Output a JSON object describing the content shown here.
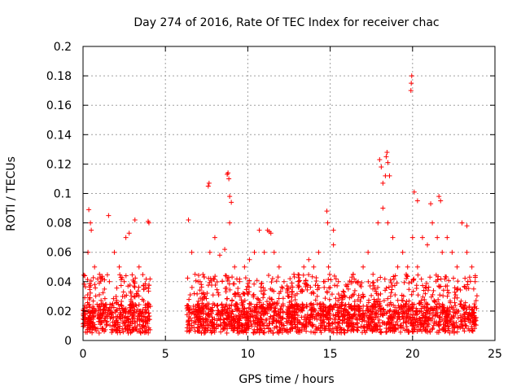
{
  "chart_data": {
    "type": "scatter",
    "title": "Day 274 of 2016, Rate Of TEC Index for receiver chac",
    "xlabel": "GPS time / hours",
    "ylabel": "ROTI / TECUs",
    "xlim": [
      0,
      25
    ],
    "ylim": [
      0,
      0.2
    ],
    "x_ticks": [
      0,
      5,
      10,
      15,
      20,
      25
    ],
    "y_ticks": [
      0,
      0.02,
      0.04,
      0.06,
      0.08,
      0.1,
      0.12,
      0.14,
      0.16,
      0.18,
      0.2
    ],
    "x_tick_labels": [
      "0",
      "5",
      "10",
      "15",
      "20",
      "25"
    ],
    "y_tick_labels": [
      "0",
      "0.02",
      "0.04",
      "0.06",
      "0.08",
      "0.1",
      "0.12",
      "0.14",
      "0.16",
      "0.18",
      "0.2"
    ],
    "grid": true,
    "marker": "+",
    "marker_color": "#ff0000",
    "series": [
      {
        "name": "ROTI",
        "x": [
          0.1,
          0.3,
          0.5,
          0.7,
          1.0,
          1.3,
          1.6,
          1.9,
          2.2,
          2.5,
          2.8,
          3.1,
          3.4,
          3.7,
          4.0,
          0.2,
          0.4,
          0.6,
          0.9,
          1.2,
          1.5,
          1.8,
          2.1,
          2.4,
          2.7,
          3.0,
          3.3,
          3.6,
          3.9,
          0.35,
          0.45,
          1.55,
          2.6,
          3.15,
          3.95,
          6.4,
          6.6,
          6.8,
          7.1,
          7.4,
          7.7,
          8.0,
          8.3,
          8.6,
          8.9,
          9.2,
          9.5,
          9.8,
          10.1,
          10.4,
          10.7,
          11.0,
          11.3,
          11.6,
          11.9,
          12.2,
          12.5,
          12.8,
          13.1,
          13.4,
          13.7,
          14.0,
          14.3,
          14.6,
          14.9,
          15.2,
          15.5,
          15.8,
          16.1,
          16.4,
          16.7,
          17.0,
          17.3,
          17.6,
          17.9,
          18.2,
          18.5,
          18.8,
          19.1,
          19.4,
          19.7,
          20.0,
          20.3,
          20.6,
          20.9,
          21.2,
          21.5,
          21.8,
          22.1,
          22.4,
          22.7,
          23.0,
          23.3,
          23.6,
          23.8,
          6.5,
          6.9,
          7.3,
          7.6,
          7.9,
          8.2,
          8.7,
          9.1,
          9.4,
          10.2,
          10.6,
          11.1,
          11.5,
          12.0,
          12.6,
          13.2,
          13.8,
          14.4,
          15.0,
          15.6,
          16.2,
          16.8,
          17.4,
          18.0,
          18.6,
          19.2,
          19.8,
          20.4,
          21.0,
          21.6,
          22.2,
          22.8,
          23.4,
          7.6,
          7.65,
          8.75,
          8.8,
          8.85,
          8.9,
          9.0,
          11.2,
          11.4,
          14.8,
          14.85,
          15.2,
          18.0,
          18.1,
          18.2,
          18.35,
          18.4,
          18.45,
          18.5,
          18.6,
          19.9,
          19.92,
          19.95,
          20.1,
          20.3,
          21.1,
          21.6,
          21.7,
          23.0,
          23.3
        ],
        "y": [
          0.02,
          0.06,
          0.075,
          0.05,
          0.045,
          0.035,
          0.04,
          0.06,
          0.05,
          0.04,
          0.073,
          0.03,
          0.05,
          0.035,
          0.08,
          0.012,
          0.015,
          0.01,
          0.018,
          0.008,
          0.02,
          0.025,
          0.012,
          0.03,
          0.015,
          0.022,
          0.01,
          0.028,
          0.015,
          0.089,
          0.08,
          0.085,
          0.07,
          0.082,
          0.081,
          0.082,
          0.06,
          0.045,
          0.04,
          0.03,
          0.06,
          0.07,
          0.058,
          0.062,
          0.08,
          0.05,
          0.04,
          0.05,
          0.055,
          0.06,
          0.075,
          0.06,
          0.074,
          0.06,
          0.05,
          0.04,
          0.03,
          0.045,
          0.04,
          0.05,
          0.055,
          0.05,
          0.06,
          0.04,
          0.05,
          0.065,
          0.04,
          0.03,
          0.035,
          0.045,
          0.04,
          0.05,
          0.06,
          0.045,
          0.08,
          0.09,
          0.08,
          0.07,
          0.05,
          0.06,
          0.05,
          0.07,
          0.05,
          0.07,
          0.065,
          0.08,
          0.07,
          0.06,
          0.07,
          0.06,
          0.05,
          0.08,
          0.06,
          0.05,
          0.04,
          0.015,
          0.02,
          0.012,
          0.018,
          0.025,
          0.01,
          0.02,
          0.015,
          0.022,
          0.018,
          0.012,
          0.02,
          0.025,
          0.015,
          0.018,
          0.02,
          0.012,
          0.025,
          0.015,
          0.02,
          0.018,
          0.022,
          0.015,
          0.025,
          0.02,
          0.018,
          0.022,
          0.015,
          0.02,
          0.025,
          0.018,
          0.02,
          0.015,
          0.105,
          0.107,
          0.113,
          0.114,
          0.11,
          0.098,
          0.094,
          0.075,
          0.073,
          0.088,
          0.08,
          0.075,
          0.123,
          0.118,
          0.107,
          0.112,
          0.125,
          0.128,
          0.121,
          0.112,
          0.17,
          0.175,
          0.18,
          0.101,
          0.095,
          0.093,
          0.098,
          0.095,
          0.08,
          0.078
        ],
        "extra_scatter_bands": true
      }
    ]
  }
}
